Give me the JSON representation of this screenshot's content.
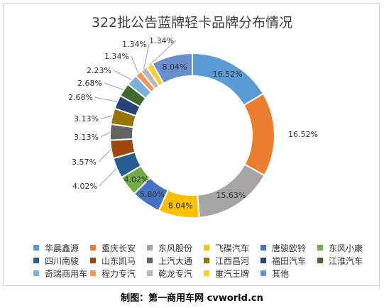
{
  "chart_data": {
    "type": "pie",
    "title": "322批公告蓝牌轻卡品牌分布情况",
    "categories": [
      "华晨鑫源",
      "重庆长安",
      "东风股份",
      "飞碟汽车",
      "唐骏欧铃",
      "东风小康",
      "四川南骏",
      "山东凯马",
      "上汽大通",
      "江西昌河",
      "福田汽车",
      "江淮汽车",
      "奇瑞商用车",
      "程力专汽",
      "乾龙专汽",
      "重汽王牌",
      "其他"
    ],
    "values": [
      16.52,
      16.52,
      15.63,
      8.04,
      5.8,
      4.02,
      4.02,
      3.57,
      3.13,
      3.13,
      2.68,
      2.68,
      2.23,
      1.34,
      1.34,
      1.34,
      8.04
    ],
    "labels": [
      "16.52%",
      "16.52%",
      "15.63%",
      "8.04%",
      "5.80%",
      "4.02%",
      "4.02%",
      "3.57%",
      "3.13%",
      "3.13%",
      "2.68%",
      "2.68%",
      "2.23%",
      "1.34%",
      "1.34%",
      "1.34%",
      "8.04%"
    ],
    "colors": [
      "#5B9BD5",
      "#ED7D31",
      "#A5A5A5",
      "#FFC000",
      "#4472C4",
      "#70AD47",
      "#255E91",
      "#9E480E",
      "#636363",
      "#997300",
      "#264478",
      "#43682B",
      "#7CAFDD",
      "#F1975A",
      "#B7B7B7",
      "#FFCD33",
      "#698ED0"
    ],
    "legend_position": "bottom",
    "donut": true
  },
  "footer": {
    "credit": "制图：第一商用车网 cvworld.cn"
  }
}
